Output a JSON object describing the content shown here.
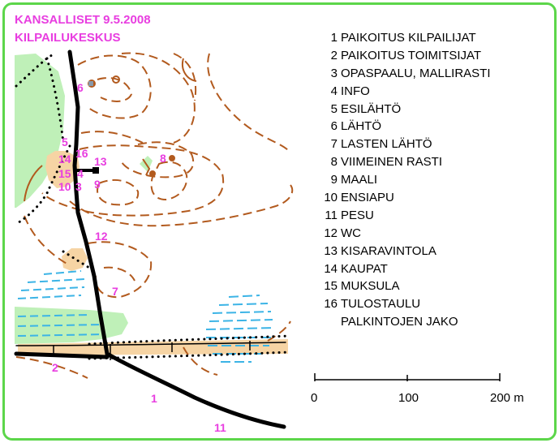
{
  "header": {
    "line1": "KANSALLISET 9.5.2008",
    "line2": "KILPAILUKESKUS"
  },
  "colors": {
    "frame": "#5cd64a",
    "title": "#e83ee0",
    "contour": "#b25a1e",
    "road": "#000000",
    "vegetation": "#bff0b8",
    "open_land": "#f6d4a4",
    "marsh": "#3cb4e6",
    "marker": "#e83ee0"
  },
  "map_labels": {
    "m1": "1",
    "m2": "2",
    "m3": "3",
    "m4": "4",
    "m5": "5",
    "m6": "6",
    "m7": "7",
    "m8": "8",
    "m9": "9",
    "m10": "10",
    "m11": "11",
    "m12": "12",
    "m13": "13",
    "m14": "14",
    "m15": "15",
    "m16": "16"
  },
  "legend": [
    {
      "num": "1",
      "label": "PAIKOITUS KILPAILIJAT"
    },
    {
      "num": "2",
      "label": "PAIKOITUS TOIMITSIJAT"
    },
    {
      "num": "3",
      "label": "OPASPAALU, MALLIRASTI"
    },
    {
      "num": "4",
      "label": "INFO"
    },
    {
      "num": "5",
      "label": "ESILÄHTÖ"
    },
    {
      "num": "6",
      "label": "LÄHTÖ"
    },
    {
      "num": "7",
      "label": "LASTEN LÄHTÖ"
    },
    {
      "num": "8",
      "label": "VIIMEINEN RASTI"
    },
    {
      "num": "9",
      "label": "MAALI"
    },
    {
      "num": "10",
      "label": "ENSIAPU"
    },
    {
      "num": "11",
      "label": "PESU"
    },
    {
      "num": "12",
      "label": "WC"
    },
    {
      "num": "13",
      "label": "KISARAVINTOLA"
    },
    {
      "num": "14",
      "label": "KAUPAT"
    },
    {
      "num": "15",
      "label": "MUKSULA"
    },
    {
      "num": "16",
      "label": "TULOSTAULU"
    }
  ],
  "legend_extra": "PALKINTOJEN JAKO",
  "scale": {
    "tick0": "0",
    "tick1": "100",
    "tick2": "200 m"
  }
}
